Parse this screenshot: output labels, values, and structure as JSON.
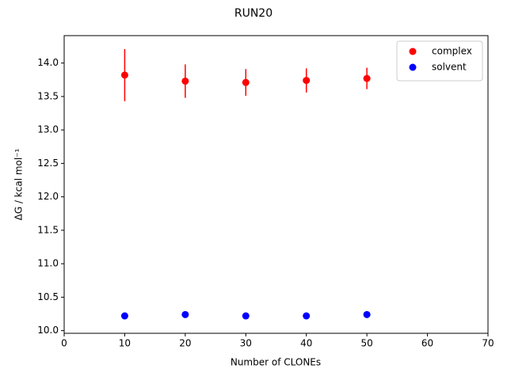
{
  "chart_data": {
    "type": "scatter",
    "title": "RUN20",
    "x_label": "Number of CLONEs",
    "y_label": "ΔG / kcal mol⁻¹",
    "x": [
      10,
      20,
      30,
      40,
      50
    ],
    "series": [
      {
        "name": "complex",
        "color": "#ff0000",
        "values": [
          13.82,
          13.73,
          13.71,
          13.74,
          13.77
        ],
        "errors": [
          0.39,
          0.25,
          0.2,
          0.18,
          0.16
        ]
      },
      {
        "name": "solvent",
        "color": "#0000ff",
        "values": [
          10.22,
          10.24,
          10.22,
          10.22,
          10.24
        ],
        "errors": [
          0.05,
          0.02,
          0.02,
          0.02,
          0.02
        ]
      }
    ],
    "xlim": [
      0,
      70
    ],
    "xticks": [
      0,
      10,
      20,
      30,
      40,
      50,
      60,
      70
    ],
    "ylim": [
      9.96,
      14.41
    ],
    "yticks": [
      {
        "value": 10,
        "label": "10.0"
      },
      10.5,
      {
        "value": 11,
        "label": "11.0"
      },
      11.5,
      {
        "value": 12,
        "label": "12.0"
      },
      12.5,
      {
        "value": 13,
        "label": "13.0"
      },
      13.5,
      {
        "value": 14,
        "label": "14.0"
      }
    ],
    "legend": "upper right",
    "grid": false
  }
}
